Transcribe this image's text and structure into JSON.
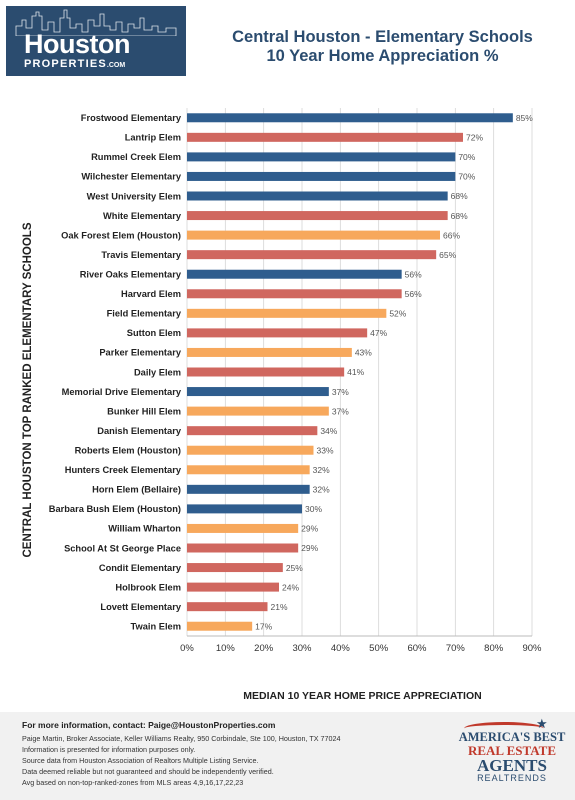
{
  "header": {
    "logo_main": "Houston",
    "logo_sub": "PROPERTIES",
    "logo_com": ".COM",
    "title_line1": "Central Houston - Elementary Schools",
    "title_line2": "10 Year Home Appreciation %"
  },
  "colors": {
    "brand": "#2b4c6f",
    "blue": "#2f5d8e",
    "red": "#d0675f",
    "orange": "#f7a85c",
    "grid": "#d5d5d5"
  },
  "chart_data": {
    "type": "bar",
    "orientation": "horizontal",
    "title": "Central Houston - Elementary Schools 10 Year Home Appreciation %",
    "xlabel": "MEDIAN 10 YEAR HOME PRICE APPRECIATION",
    "ylabel": "CENTRAL HOUSTON TOP RANKED ELEMENTARY SCHOOLS",
    "xlim": [
      0,
      90
    ],
    "xticks": [
      "0%",
      "10%",
      "20%",
      "30%",
      "40%",
      "50%",
      "60%",
      "70%",
      "80%",
      "90%"
    ],
    "grid": true,
    "categories": [
      "Frostwood Elementary",
      "Lantrip Elem",
      "Rummel Creek Elem",
      "Wilchester Elementary",
      "West University Elem",
      "White Elementary",
      "Oak Forest Elem (Houston)",
      "Travis Elementary",
      "River Oaks Elementary",
      "Harvard Elem",
      "Field Elementary",
      "Sutton Elem",
      "Parker Elementary",
      "Daily Elem",
      "Memorial Drive Elementary",
      "Bunker Hill Elem",
      "Danish Elementary",
      "Roberts Elem (Houston)",
      "Hunters Creek Elementary",
      "Horn Elem (Bellaire)",
      "Barbara Bush Elem (Houston)",
      "William Wharton",
      "School At St George Place",
      "Condit Elementary",
      "Holbrook Elem",
      "Lovett Elementary",
      "Twain Elem"
    ],
    "values": [
      85,
      72,
      70,
      70,
      68,
      68,
      66,
      65,
      56,
      56,
      52,
      47,
      43,
      41,
      37,
      37,
      34,
      33,
      32,
      32,
      30,
      29,
      29,
      25,
      24,
      21,
      17
    ],
    "value_labels": [
      "85%",
      "72%",
      "70%",
      "70%",
      "68%",
      "68%",
      "66%",
      "65%",
      "56%",
      "56%",
      "52%",
      "47%",
      "43%",
      "41%",
      "37%",
      "37%",
      "34%",
      "33%",
      "32%",
      "32%",
      "30%",
      "29%",
      "29%",
      "25%",
      "24%",
      "21%",
      "17%"
    ],
    "bar_colors": [
      "#2f5d8e",
      "#d0675f",
      "#2f5d8e",
      "#2f5d8e",
      "#2f5d8e",
      "#d0675f",
      "#f7a85c",
      "#d0675f",
      "#2f5d8e",
      "#d0675f",
      "#f7a85c",
      "#d0675f",
      "#f7a85c",
      "#d0675f",
      "#2f5d8e",
      "#f7a85c",
      "#d0675f",
      "#f7a85c",
      "#f7a85c",
      "#2f5d8e",
      "#2f5d8e",
      "#f7a85c",
      "#d0675f",
      "#d0675f",
      "#d0675f",
      "#d0675f",
      "#f7a85c"
    ]
  },
  "footer": {
    "contact": "For more information, contact: Paige@HoustonProperties.com",
    "lines": [
      "Paige Martin, Broker Associate, Keller Williams Realty, 950 Corbindale, Ste 100, Houston, TX 77024",
      "Information is presented for information purposes only.",
      "Source data from Houston Association of Realtors Multiple Listing Service.",
      "Data deemed reliable but not guaranteed and should be independently verified.",
      "Avg based on non-top-ranked-zones from MLS areas 4,9,16,17,22,23"
    ]
  },
  "badge": {
    "line1": "AMERICA'S BEST",
    "line2": "REAL ESTATE",
    "line3": "AGENTS",
    "line4": "REALTRENDS"
  }
}
